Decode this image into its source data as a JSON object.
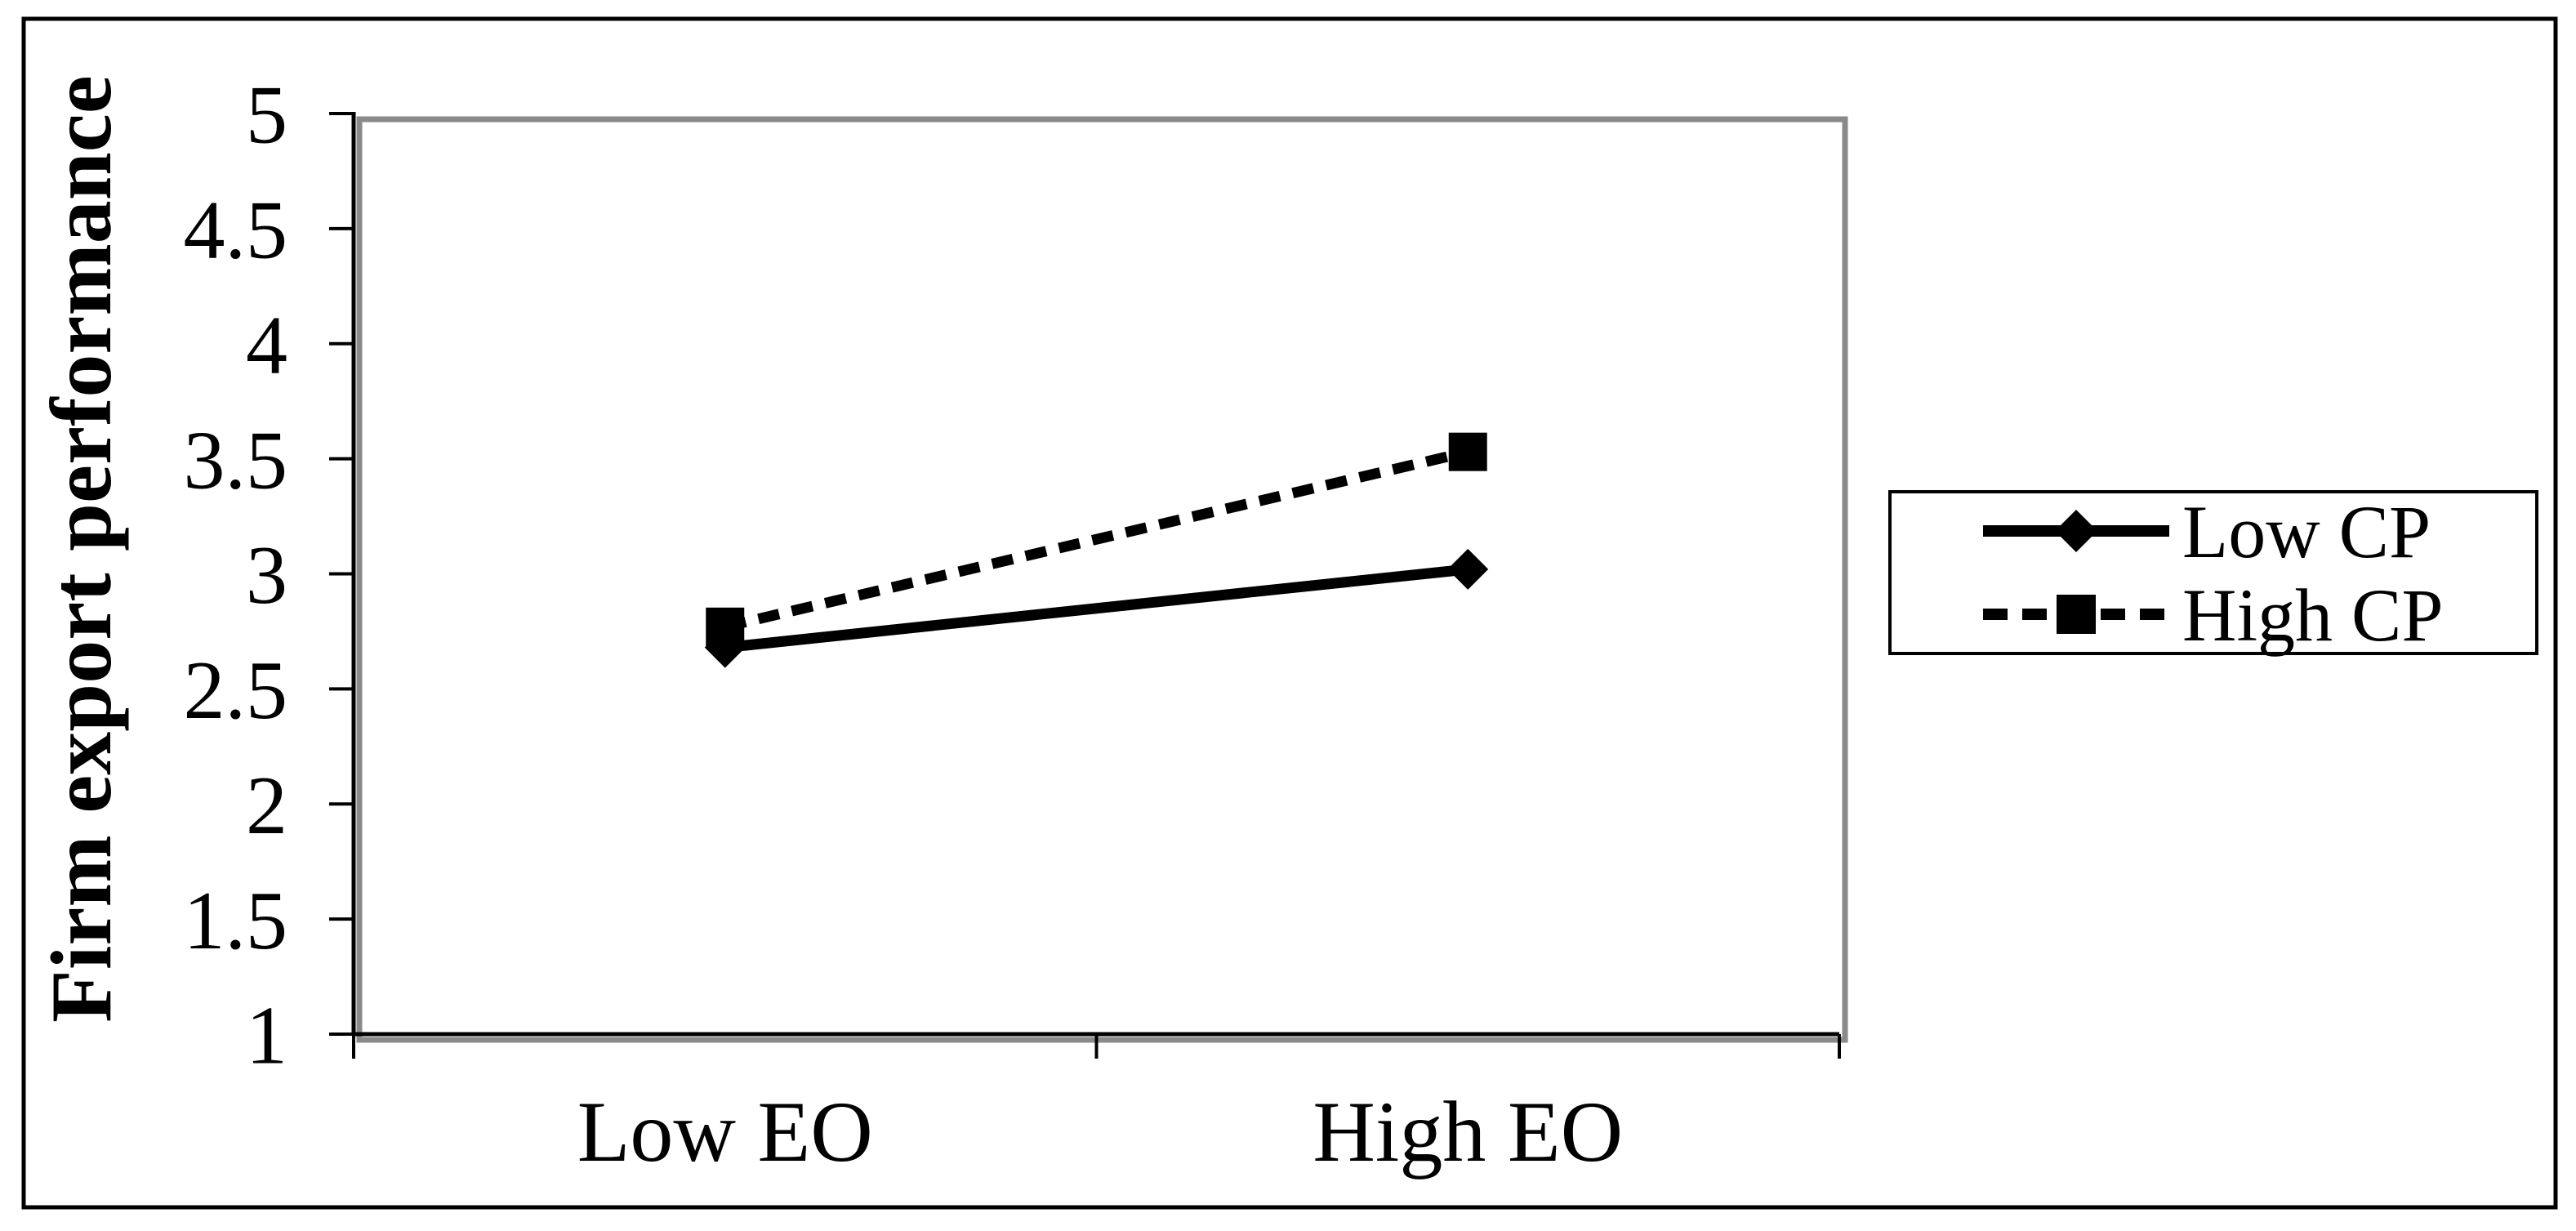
{
  "chart_data": {
    "type": "line",
    "title": "",
    "xlabel": "",
    "ylabel": "Firm export performance",
    "categories": [
      "Low EO",
      "High EO"
    ],
    "series": [
      {
        "name": "Low CP",
        "values": [
          2.68,
          3.02
        ],
        "marker": "diamond",
        "line_style": "solid"
      },
      {
        "name": "High CP",
        "values": [
          2.77,
          3.53
        ],
        "marker": "square",
        "line_style": "dashed"
      }
    ],
    "ylim": [
      1,
      5
    ],
    "ytick_step": 0.5,
    "ytick_labels": [
      "5",
      "4.5",
      "4",
      "3.5",
      "3",
      "2.5",
      "2",
      "1.5",
      "1"
    ],
    "grid": "off",
    "legend_position": "right",
    "colors": {
      "series": "#000000",
      "axis": "#000000",
      "plot_border_gray": "#8a8a8a",
      "background": "#ffffff"
    }
  }
}
